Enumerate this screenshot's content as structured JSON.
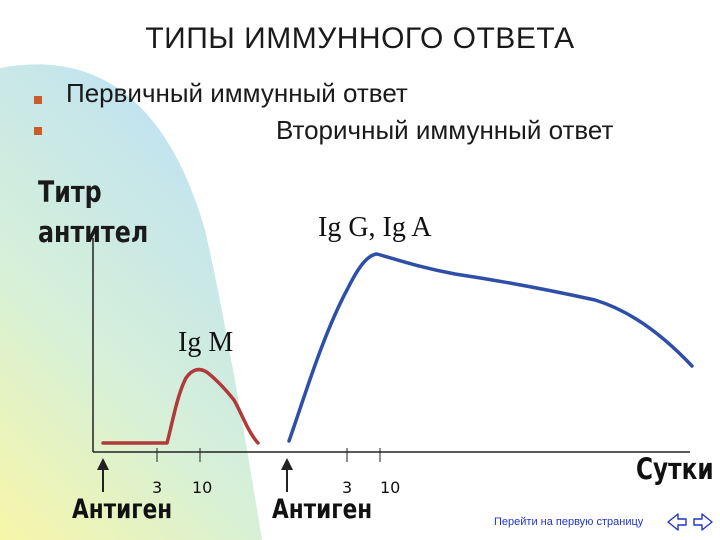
{
  "slide": {
    "title": "ТИПЫ ИММУННОГО ОТВЕТА",
    "bullets": [
      "Первичный иммунный ответ",
      "Вторичный иммунный ответ"
    ]
  },
  "diagram": {
    "y_axis_label_line1": "Титр",
    "y_axis_label_line2": "антител",
    "x_axis_label": "Сутки",
    "primary_peak_label": "Ig M",
    "secondary_peak_label": "Ig G, Ig A",
    "tick_labels": [
      "3",
      "10",
      "3",
      "10"
    ],
    "antigen_labels": [
      "Антиген",
      "Антиген"
    ],
    "primary_curve_color": "#b03a3a",
    "secondary_curve_color": "#2e4fa8"
  },
  "nav": {
    "link_text": "Перейти на первую страницу",
    "icons": [
      "arrow-left-icon",
      "arrow-right-icon"
    ]
  }
}
